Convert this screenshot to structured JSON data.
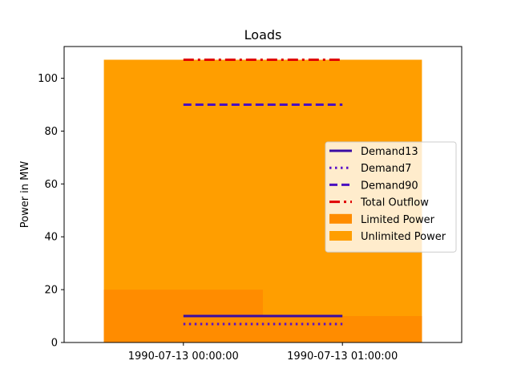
{
  "chart_data": {
    "type": "line",
    "title": "Loads",
    "xlabel": "",
    "ylabel": "Power in MW",
    "x_ticks": [
      "1990-07-13 00:00:00",
      "1990-07-13 01:00:00"
    ],
    "ylim": [
      0,
      112
    ],
    "y_ticks": [
      0,
      20,
      40,
      60,
      80,
      100
    ],
    "grid": false,
    "legend_position": "center-right",
    "series": [
      {
        "name": "Demand13",
        "kind": "line",
        "style": "solid",
        "color": "#3a0ca3",
        "values": [
          10,
          10
        ]
      },
      {
        "name": "Demand7",
        "kind": "line",
        "style": "dotted",
        "color": "#5a10c8",
        "values": [
          7,
          7
        ]
      },
      {
        "name": "Demand90",
        "kind": "line",
        "style": "dashed",
        "color": "#4a0fc0",
        "values": [
          90,
          90
        ]
      },
      {
        "name": "Total Outflow",
        "kind": "line",
        "style": "dashdot",
        "color": "#e00000",
        "values": [
          107,
          107
        ]
      },
      {
        "name": "Limited Power",
        "kind": "bar",
        "color": "#ff8c00",
        "values": [
          20,
          10
        ]
      },
      {
        "name": "Unlimited Power",
        "kind": "bar",
        "color": "#ff9e00",
        "values": [
          107,
          107
        ]
      }
    ]
  }
}
